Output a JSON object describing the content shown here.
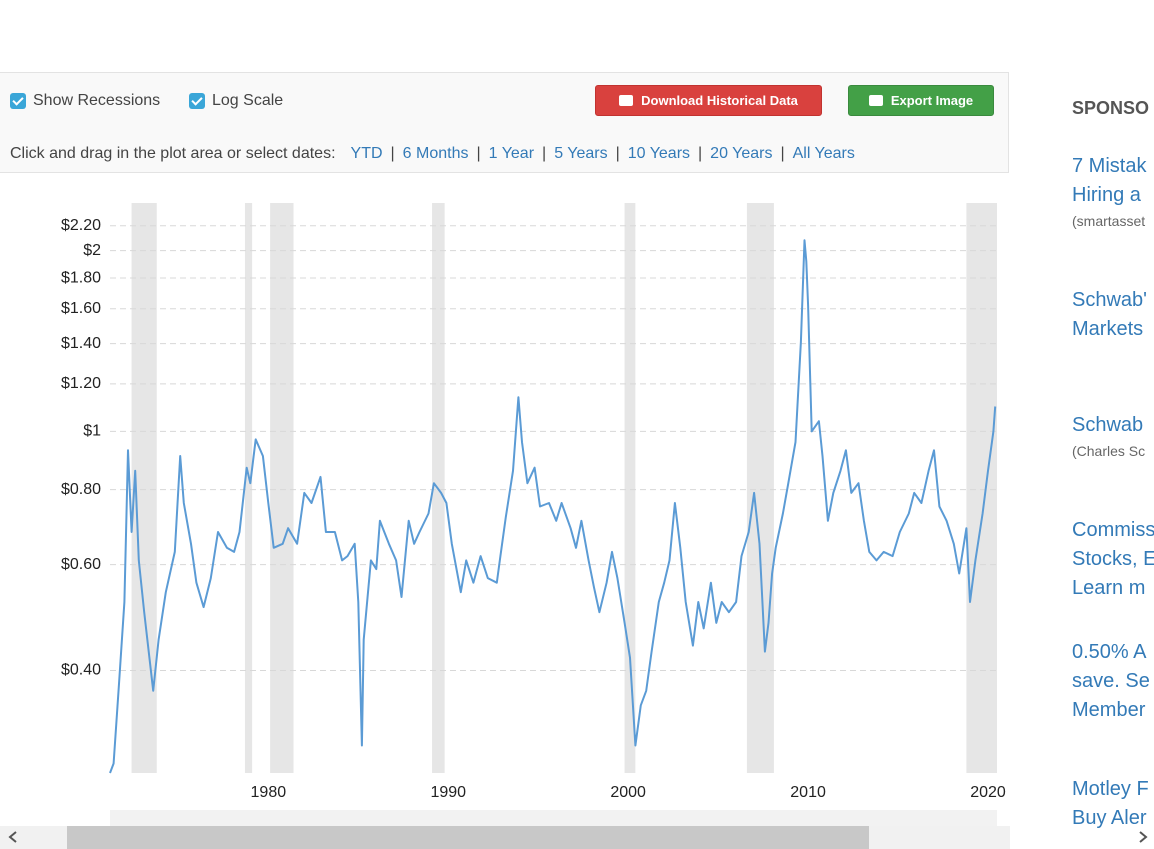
{
  "toolbar": {
    "checkboxes": [
      "Show Recessions",
      "Log Scale"
    ],
    "buttons": [
      "Download Historical Data",
      "Export Image"
    ],
    "prompt": "Click and drag in the plot area or select dates:",
    "ranges": [
      "YTD",
      "6 Months",
      "1 Year",
      "5 Years",
      "10 Years",
      "20 Years",
      "All Years"
    ]
  },
  "chart_data": {
    "type": "line",
    "log_scale": true,
    "grid": true,
    "x": [
      1971.2,
      1971.4,
      1971.7,
      1972.0,
      1972.2,
      1972.4,
      1972.6,
      1972.8,
      1973.1,
      1973.6,
      1973.9,
      1974.3,
      1974.8,
      1975.1,
      1975.3,
      1975.7,
      1976.0,
      1976.4,
      1976.8,
      1977.2,
      1977.7,
      1978.1,
      1978.4,
      1978.8,
      1979.0,
      1979.3,
      1979.7,
      1980.0,
      1980.3,
      1980.8,
      1981.1,
      1981.6,
      1982.0,
      1982.4,
      1982.9,
      1983.2,
      1983.7,
      1984.1,
      1984.4,
      1984.8,
      1985.0,
      1985.2,
      1985.3,
      1985.7,
      1986.0,
      1986.2,
      1986.7,
      1987.1,
      1987.4,
      1987.8,
      1988.1,
      1988.4,
      1988.9,
      1989.2,
      1989.6,
      1989.9,
      1990.2,
      1990.7,
      1991.0,
      1991.4,
      1991.8,
      1992.2,
      1992.7,
      1992.9,
      1993.2,
      1993.6,
      1993.9,
      1994.1,
      1994.4,
      1994.8,
      1995.1,
      1995.6,
      1996.0,
      1996.3,
      1996.8,
      1997.1,
      1997.4,
      1997.8,
      1998.1,
      1998.4,
      1998.8,
      1999.1,
      1999.4,
      1999.8,
      2000.1,
      2000.4,
      2000.7,
      2001.0,
      2001.3,
      2001.7,
      2002.0,
      2002.3,
      2002.6,
      2002.9,
      2003.2,
      2003.6,
      2003.9,
      2004.2,
      2004.6,
      2004.9,
      2005.2,
      2005.6,
      2006.0,
      2006.3,
      2006.7,
      2007.0,
      2007.3,
      2007.6,
      2007.8,
      2008.0,
      2008.2,
      2008.6,
      2008.9,
      2009.3,
      2009.6,
      2009.8,
      2009.9,
      2010.0,
      2010.2,
      2010.6,
      2010.8,
      2011.1,
      2011.4,
      2011.8,
      2012.1,
      2012.4,
      2012.8,
      2013.1,
      2013.4,
      2013.8,
      2014.2,
      2014.7,
      2015.1,
      2015.6,
      2015.9,
      2016.3,
      2016.7,
      2017.0,
      2017.3,
      2017.7,
      2018.1,
      2018.4,
      2018.8,
      2019.0,
      2019.3,
      2019.7,
      2020.0,
      2020.3,
      2020.4
    ],
    "series": [
      {
        "color": "#5b9bd5",
        "values": [
          0.27,
          0.28,
          0.38,
          0.52,
          0.93,
          0.68,
          0.86,
          0.61,
          0.5,
          0.37,
          0.45,
          0.54,
          0.63,
          0.91,
          0.76,
          0.65,
          0.56,
          0.51,
          0.57,
          0.68,
          0.64,
          0.63,
          0.68,
          0.87,
          0.82,
          0.97,
          0.91,
          0.76,
          0.64,
          0.65,
          0.69,
          0.65,
          0.79,
          0.76,
          0.84,
          0.68,
          0.68,
          0.61,
          0.62,
          0.65,
          0.52,
          0.3,
          0.45,
          0.61,
          0.59,
          0.71,
          0.65,
          0.61,
          0.53,
          0.71,
          0.65,
          0.68,
          0.73,
          0.82,
          0.79,
          0.76,
          0.65,
          0.54,
          0.61,
          0.56,
          0.62,
          0.57,
          0.56,
          0.62,
          0.72,
          0.86,
          1.14,
          0.96,
          0.82,
          0.87,
          0.75,
          0.76,
          0.71,
          0.76,
          0.69,
          0.64,
          0.71,
          0.61,
          0.55,
          0.5,
          0.56,
          0.63,
          0.57,
          0.48,
          0.42,
          0.3,
          0.35,
          0.37,
          0.43,
          0.52,
          0.56,
          0.61,
          0.76,
          0.64,
          0.52,
          0.44,
          0.52,
          0.47,
          0.56,
          0.48,
          0.52,
          0.5,
          0.52,
          0.62,
          0.68,
          0.79,
          0.65,
          0.43,
          0.48,
          0.58,
          0.64,
          0.73,
          0.82,
          0.96,
          1.41,
          2.08,
          1.92,
          1.62,
          1.0,
          1.04,
          0.91,
          0.71,
          0.79,
          0.86,
          0.93,
          0.79,
          0.82,
          0.71,
          0.63,
          0.61,
          0.63,
          0.62,
          0.68,
          0.73,
          0.79,
          0.76,
          0.86,
          0.93,
          0.75,
          0.71,
          0.65,
          0.58,
          0.69,
          0.52,
          0.61,
          0.73,
          0.86,
          1.0,
          1.1
        ]
      }
    ],
    "xlim": [
      1971.2,
      2020.5
    ],
    "xticks": [
      1980,
      1990,
      2000,
      2010,
      2020
    ],
    "ylim": [
      0.27,
      2.4
    ],
    "yticks": [
      {
        "value": 0.4,
        "label": "$0.40"
      },
      {
        "value": 0.6,
        "label": "$0.60"
      },
      {
        "value": 0.8,
        "label": "$0.80"
      },
      {
        "value": 1,
        "label": "$1"
      },
      {
        "value": 1.2,
        "label": "$1.20"
      },
      {
        "value": 1.4,
        "label": "$1.40"
      },
      {
        "value": 1.6,
        "label": "$1.60"
      },
      {
        "value": 1.8,
        "label": "$1.80"
      },
      {
        "value": 2,
        "label": "$2"
      },
      {
        "value": 2.2,
        "label": "$2.20"
      }
    ],
    "recessions": [
      [
        1972.4,
        1973.8
      ],
      [
        1978.7,
        1979.1
      ],
      [
        1980.1,
        1981.4
      ],
      [
        1989.1,
        1989.8
      ],
      [
        1999.8,
        2000.4
      ],
      [
        2006.6,
        2008.1
      ],
      [
        2018.8,
        2020.5
      ]
    ],
    "recession_color": "#e6e6e6"
  },
  "sidebar": {
    "heading": "SPONSO",
    "ads": [
      {
        "lines": [
          "7 Mistak",
          "Hiring a"
        ],
        "source": "(smartasset"
      },
      {
        "lines": [
          "Schwab'",
          "Markets"
        ]
      },
      {
        "lines": [
          "Schwab"
        ],
        "source": "(Charles Sc"
      },
      {
        "lines": [
          "Commiss",
          "Stocks, E",
          "Learn m"
        ]
      },
      {
        "lines": [
          "0.50% A",
          "save. Se",
          "Member"
        ]
      },
      {
        "lines": [
          "Motley F",
          "Buy Aler"
        ]
      }
    ]
  }
}
